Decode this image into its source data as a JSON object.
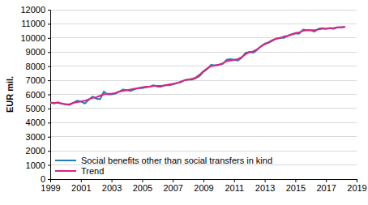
{
  "chart_data": {
    "type": "line",
    "y_label": "EUR mil.",
    "x": [
      1999,
      1999.25,
      1999.5,
      1999.75,
      2000,
      2000.25,
      2000.5,
      2000.75,
      2001,
      2001.25,
      2001.5,
      2001.75,
      2002,
      2002.25,
      2002.5,
      2002.75,
      2003,
      2003.25,
      2003.5,
      2003.75,
      2004,
      2004.25,
      2004.5,
      2004.75,
      2005,
      2005.25,
      2005.5,
      2005.75,
      2006,
      2006.25,
      2006.5,
      2006.75,
      2007,
      2007.25,
      2007.5,
      2007.75,
      2008,
      2008.25,
      2008.5,
      2008.75,
      2009,
      2009.25,
      2009.5,
      2009.75,
      2010,
      2010.25,
      2010.5,
      2010.75,
      2011,
      2011.25,
      2011.5,
      2011.75,
      2012,
      2012.25,
      2012.5,
      2012.75,
      2013,
      2013.25,
      2013.5,
      2013.75,
      2014,
      2014.25,
      2014.5,
      2014.75,
      2015,
      2015.25,
      2015.5,
      2015.75,
      2016,
      2016.25,
      2016.5,
      2016.75,
      2017,
      2017.25,
      2017.5,
      2017.75,
      2018,
      2018.25
    ],
    "series": [
      {
        "name": "Social benefits other than social transfers in kind",
        "color": "#1f7fc4",
        "values": [
          5450,
          5350,
          5450,
          5350,
          5300,
          5250,
          5400,
          5550,
          5500,
          5350,
          5600,
          5850,
          5700,
          5650,
          6200,
          6000,
          6000,
          6050,
          6200,
          6350,
          6300,
          6250,
          6350,
          6450,
          6450,
          6500,
          6550,
          6650,
          6550,
          6550,
          6650,
          6650,
          6700,
          6800,
          6850,
          7000,
          7050,
          7050,
          7150,
          7300,
          7600,
          7800,
          8100,
          8050,
          8100,
          8150,
          8450,
          8500,
          8450,
          8400,
          8600,
          8950,
          9000,
          8950,
          9150,
          9400,
          9600,
          9650,
          9800,
          9950,
          10000,
          10000,
          10150,
          10250,
          10300,
          10300,
          10600,
          10550,
          10550,
          10450,
          10650,
          10700,
          10650,
          10700,
          10650,
          10750,
          10750,
          10800
        ]
      },
      {
        "name": "Trend",
        "color": "#e0227c",
        "values": [
          5400,
          5400,
          5400,
          5350,
          5300,
          5300,
          5400,
          5450,
          5500,
          5550,
          5650,
          5750,
          5800,
          5900,
          6000,
          6050,
          6050,
          6100,
          6200,
          6250,
          6300,
          6350,
          6400,
          6450,
          6500,
          6550,
          6550,
          6600,
          6600,
          6600,
          6650,
          6700,
          6750,
          6800,
          6900,
          7000,
          7050,
          7100,
          7200,
          7400,
          7650,
          7850,
          8000,
          8050,
          8100,
          8200,
          8350,
          8400,
          8450,
          8500,
          8650,
          8850,
          9000,
          9050,
          9200,
          9400,
          9550,
          9700,
          9850,
          9950,
          10000,
          10100,
          10150,
          10250,
          10350,
          10400,
          10500,
          10550,
          10550,
          10550,
          10600,
          10650,
          10650,
          10700,
          10700,
          10750,
          10750,
          10800
        ]
      }
    ],
    "xlim": [
      1999,
      2019
    ],
    "xticks": [
      1999,
      2001,
      2003,
      2005,
      2007,
      2009,
      2011,
      2013,
      2015,
      2017,
      2019
    ],
    "ylim": [
      0,
      12000
    ],
    "yticks": [
      0,
      1000,
      2000,
      3000,
      4000,
      5000,
      6000,
      7000,
      8000,
      9000,
      10000,
      11000,
      12000
    ],
    "grid": true,
    "legend": "lower left"
  }
}
